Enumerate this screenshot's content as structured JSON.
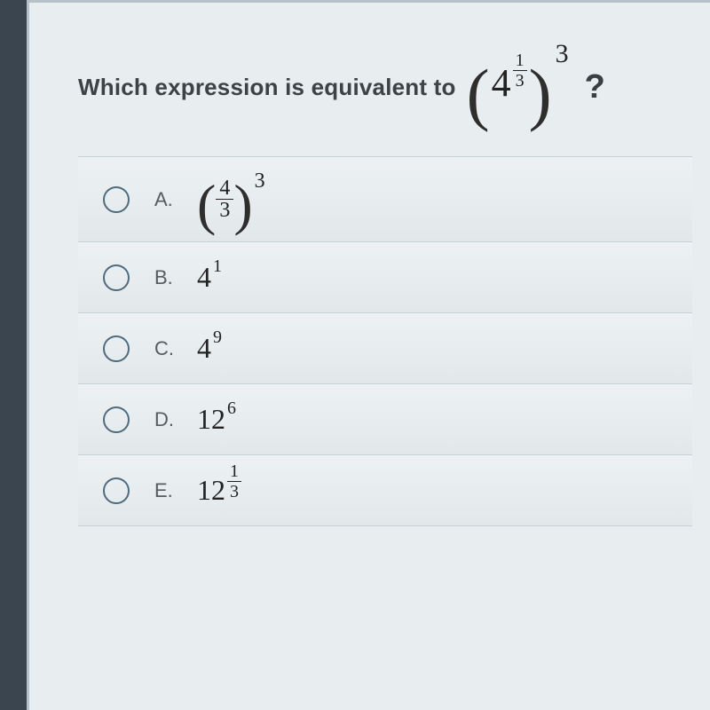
{
  "question": {
    "prompt": "Which expression is equivalent to",
    "expr": {
      "base": "4",
      "inner_exp_num": "1",
      "inner_exp_den": "3",
      "outer_exp": "3"
    },
    "qmark": "?"
  },
  "options": {
    "A": {
      "letter": "A.",
      "frac_num": "4",
      "frac_den": "3",
      "exp": "3"
    },
    "B": {
      "letter": "B.",
      "base": "4",
      "exp": "1"
    },
    "C": {
      "letter": "C.",
      "base": "4",
      "exp": "9"
    },
    "D": {
      "letter": "D.",
      "base": "12",
      "exp": "6"
    },
    "E": {
      "letter": "E.",
      "base": "12",
      "exp_num": "1",
      "exp_den": "3"
    }
  },
  "colors": {
    "bg": "#e8edef",
    "border": "#c8d1d6",
    "radio": "#4f6b80",
    "text": "#3e4145"
  }
}
